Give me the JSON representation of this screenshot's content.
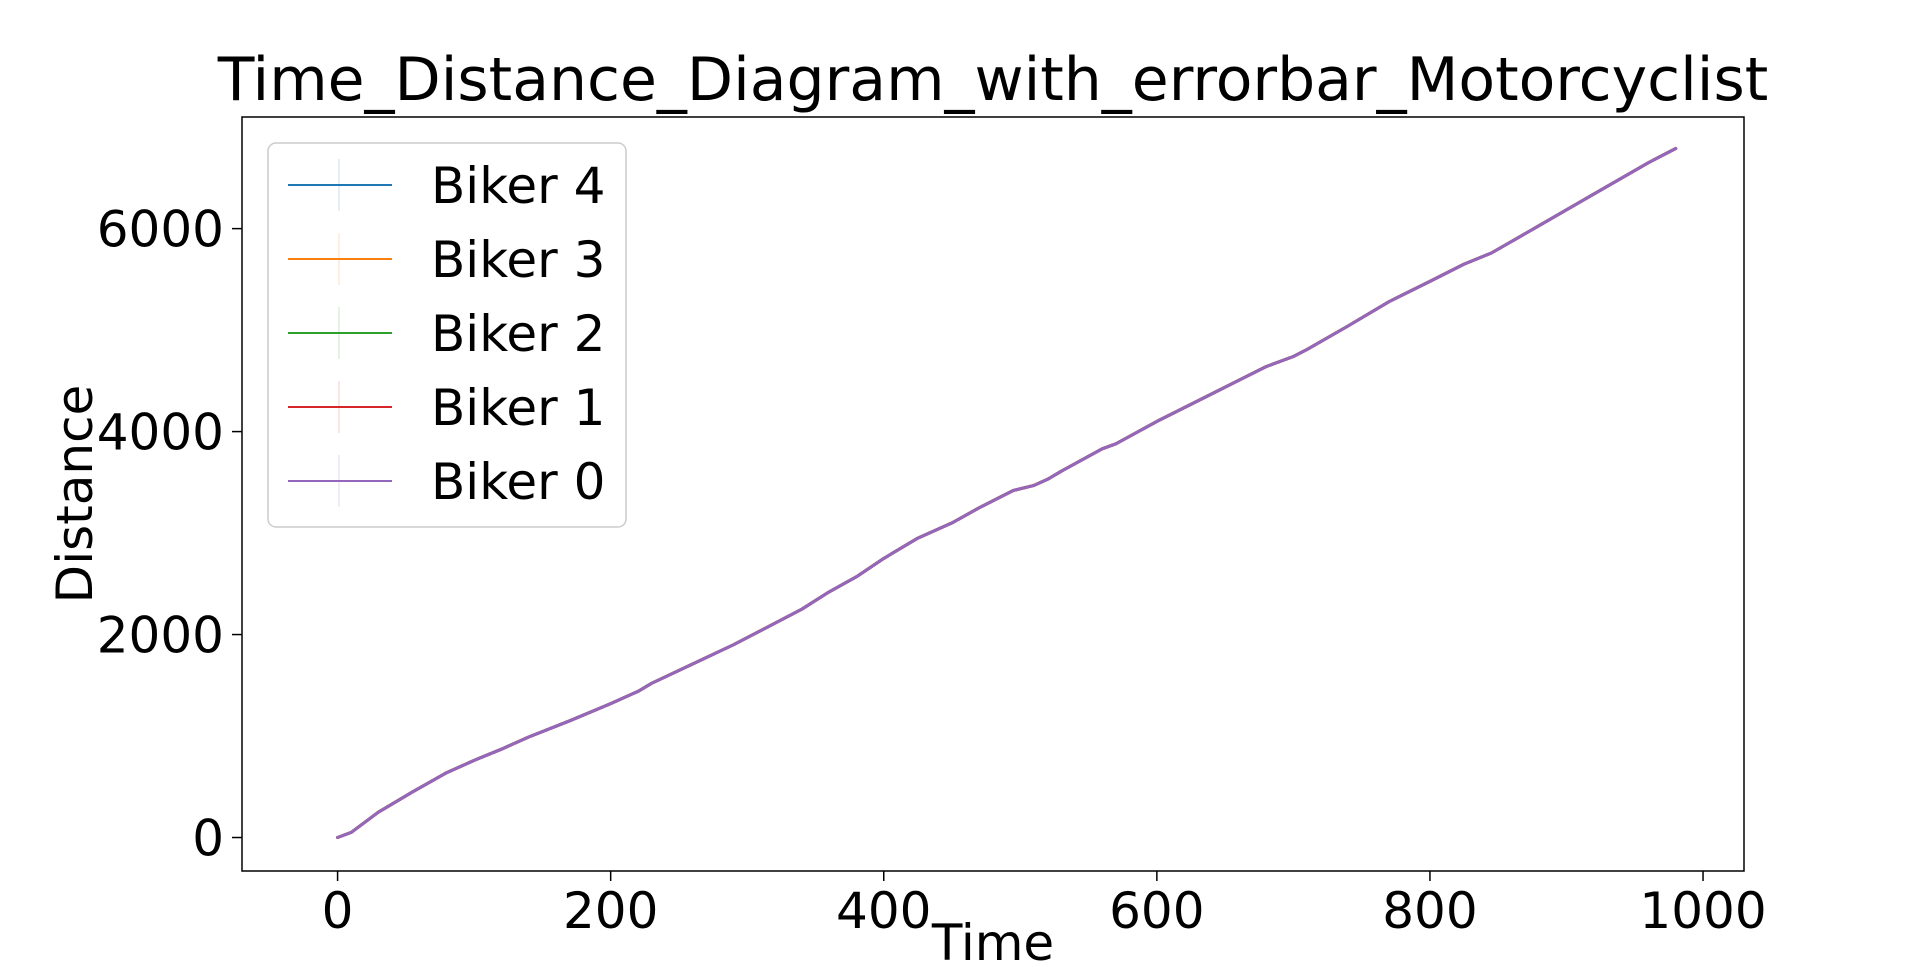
{
  "chart_data": {
    "type": "line",
    "title": "Time_Distance_Diagram_with_errorbar_Motorcyclist",
    "xlabel": "Time",
    "ylabel": "Distance",
    "xlim": [
      -70,
      1030
    ],
    "ylim": [
      -330,
      7100
    ],
    "xticks": [
      0,
      200,
      400,
      600,
      800,
      1000
    ],
    "yticks": [
      0,
      2000,
      4000,
      6000
    ],
    "grid": false,
    "legend_position": "top-left",
    "errorbars": true,
    "x": [
      0,
      10,
      30,
      55,
      80,
      100,
      120,
      140,
      170,
      200,
      220,
      230,
      260,
      290,
      320,
      340,
      360,
      380,
      400,
      425,
      450,
      470,
      495,
      510,
      520,
      530,
      560,
      570,
      600,
      640,
      680,
      700,
      710,
      740,
      770,
      800,
      825,
      845,
      880,
      920,
      960,
      980
    ],
    "series": [
      {
        "name": "Biker 4",
        "color": "#1f77b4",
        "values": [
          0,
          50,
          250,
          450,
          640,
          760,
          870,
          990,
          1150,
          1320,
          1440,
          1520,
          1710,
          1900,
          2110,
          2250,
          2420,
          2570,
          2750,
          2950,
          3100,
          3250,
          3420,
          3470,
          3530,
          3610,
          3830,
          3880,
          4100,
          4370,
          4640,
          4740,
          4810,
          5040,
          5280,
          5480,
          5650,
          5760,
          6030,
          6340,
          6650,
          6790
        ]
      },
      {
        "name": "Biker 3",
        "color": "#ff7f0e",
        "values": [
          0,
          50,
          250,
          450,
          640,
          760,
          870,
          990,
          1150,
          1320,
          1440,
          1520,
          1710,
          1900,
          2110,
          2250,
          2420,
          2570,
          2750,
          2950,
          3100,
          3250,
          3420,
          3470,
          3530,
          3610,
          3830,
          3880,
          4100,
          4370,
          4640,
          4740,
          4810,
          5040,
          5280,
          5480,
          5650,
          5760,
          6030,
          6340,
          6650,
          6790
        ]
      },
      {
        "name": "Biker 2",
        "color": "#2ca02c",
        "values": [
          0,
          50,
          250,
          450,
          640,
          760,
          870,
          990,
          1150,
          1320,
          1440,
          1520,
          1710,
          1900,
          2110,
          2250,
          2420,
          2570,
          2750,
          2950,
          3100,
          3250,
          3420,
          3470,
          3530,
          3610,
          3830,
          3880,
          4100,
          4370,
          4640,
          4740,
          4810,
          5040,
          5280,
          5480,
          5650,
          5760,
          6030,
          6340,
          6650,
          6790
        ]
      },
      {
        "name": "Biker 1",
        "color": "#d62728",
        "values": [
          0,
          50,
          250,
          450,
          640,
          760,
          870,
          990,
          1150,
          1320,
          1440,
          1520,
          1710,
          1900,
          2110,
          2250,
          2420,
          2570,
          2750,
          2950,
          3100,
          3250,
          3420,
          3470,
          3530,
          3610,
          3830,
          3880,
          4100,
          4370,
          4640,
          4740,
          4810,
          5040,
          5280,
          5480,
          5650,
          5760,
          6030,
          6340,
          6650,
          6790
        ]
      },
      {
        "name": "Biker 0",
        "color": "#9467bd",
        "values": [
          0,
          50,
          250,
          450,
          640,
          760,
          870,
          990,
          1150,
          1320,
          1440,
          1520,
          1710,
          1900,
          2110,
          2250,
          2420,
          2570,
          2750,
          2950,
          3100,
          3250,
          3420,
          3470,
          3530,
          3610,
          3830,
          3880,
          4100,
          4370,
          4640,
          4740,
          4810,
          5040,
          5280,
          5480,
          5650,
          5760,
          6030,
          6340,
          6650,
          6790
        ]
      }
    ]
  }
}
